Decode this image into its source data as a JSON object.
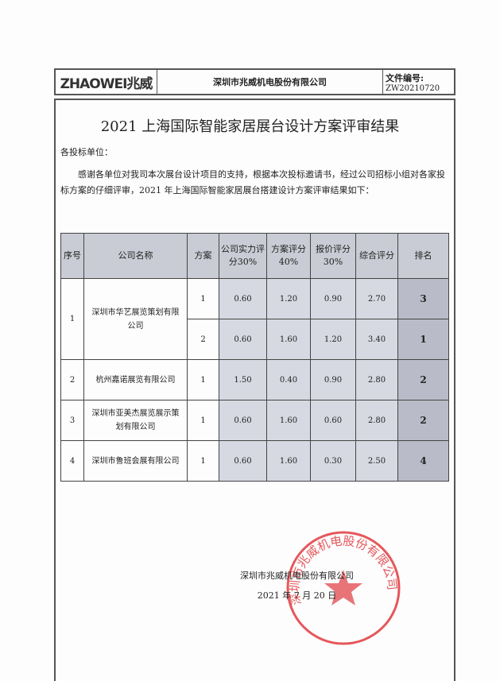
{
  "header": {
    "logo": "ZHAOWEI兆威",
    "company": "深圳市兆威机电股份有限公司",
    "doc_no_label": "文件编号:",
    "doc_no": "ZW20210720"
  },
  "title": "2021 上海国际智能家居展台设计方案评审结果",
  "salutation": "各投标单位：",
  "body": "感谢各单位对我司本次展台设计项目的支持，根据本次投标邀请书，经过公司招标小组对各家投标方案的仔细评审，2021 年上海国际智能家居展台搭建设计方案评审结果如下：",
  "table": {
    "headers": [
      "序号",
      "公司名称",
      "方案",
      "公司实力评分30%",
      "方案评分 40%",
      "报价评分 30%",
      "综合评分",
      "排名"
    ],
    "rows": [
      {
        "no": "1",
        "company": "深圳市华艺展览策划有限公司",
        "plans": [
          [
            "1",
            "0.60",
            "1.20",
            "0.90",
            "2.70",
            "3"
          ],
          [
            "2",
            "0.60",
            "1.60",
            "1.20",
            "3.40",
            "1"
          ]
        ]
      },
      {
        "no": "2",
        "company": "杭州嘉诺展览有限公司",
        "plans": [
          [
            "1",
            "1.50",
            "0.40",
            "0.90",
            "2.80",
            "2"
          ]
        ]
      },
      {
        "no": "3",
        "company": "深圳市亚美杰展览展示策划有限公司",
        "plans": [
          [
            "1",
            "0.60",
            "1.60",
            "0.60",
            "2.80",
            "2"
          ]
        ]
      },
      {
        "no": "4",
        "company": "深圳市鲁班会展有限公司",
        "plans": [
          [
            "1",
            "0.60",
            "1.60",
            "0.30",
            "2.50",
            "4"
          ]
        ]
      }
    ]
  },
  "signature": {
    "company": "深圳市兆威机电股份有限公司",
    "date": "2021 年 7 月 20 日"
  },
  "stamp": {
    "text": "深圳市兆威机电股份有限公司",
    "color": "#e0393e"
  }
}
